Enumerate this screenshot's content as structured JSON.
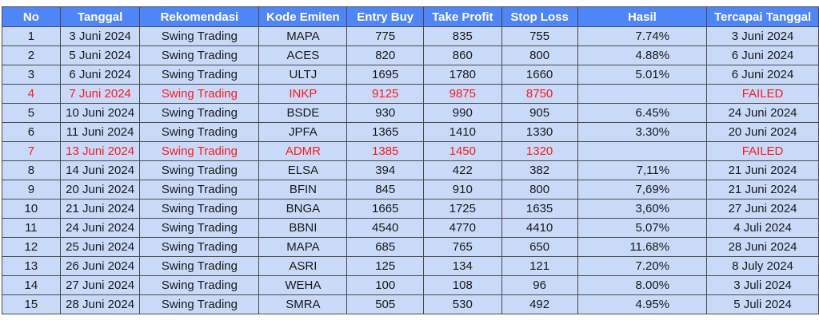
{
  "table": {
    "headers": [
      "No",
      "Tanggal",
      "Rekomendasi",
      "Kode Emiten",
      "Entry Buy",
      "Take Profit",
      "Stop Loss",
      "Hasil",
      "Tercapai Tanggal"
    ],
    "rows": [
      {
        "no": "1",
        "tanggal": "3 Juni 2024",
        "rekomendasi": "Swing Trading",
        "kode": "MAPA",
        "entry": "775",
        "tp": "835",
        "sl": "755",
        "hasil": "7.74%",
        "tercapai": "3 Juni 2024",
        "status": "ok"
      },
      {
        "no": "2",
        "tanggal": "5 Juni 2024",
        "rekomendasi": "Swing Trading",
        "kode": "ACES",
        "entry": "820",
        "tp": "860",
        "sl": "800",
        "hasil": "4.88%",
        "tercapai": "6 Juni 2024",
        "status": "ok"
      },
      {
        "no": "3",
        "tanggal": "6 Juni 2024",
        "rekomendasi": "Swing Trading",
        "kode": "ULTJ",
        "entry": "1695",
        "tp": "1780",
        "sl": "1660",
        "hasil": "5.01%",
        "tercapai": "6 Juni 2024",
        "status": "ok"
      },
      {
        "no": "4",
        "tanggal": "7 Juni 2024",
        "rekomendasi": "Swing Trading",
        "kode": "INKP",
        "entry": "9125",
        "tp": "9875",
        "sl": "8750",
        "hasil": "",
        "tercapai": "FAILED",
        "status": "failed"
      },
      {
        "no": "5",
        "tanggal": "10 Juni 2024",
        "rekomendasi": "Swing Trading",
        "kode": "BSDE",
        "entry": "930",
        "tp": "990",
        "sl": "905",
        "hasil": "6.45%",
        "tercapai": "24 Juni 2024",
        "status": "ok"
      },
      {
        "no": "6",
        "tanggal": "11 Juni 2024",
        "rekomendasi": "Swing Trading",
        "kode": "JPFA",
        "entry": "1365",
        "tp": "1410",
        "sl": "1330",
        "hasil": "3.30%",
        "tercapai": "20 Juni 2024",
        "status": "ok"
      },
      {
        "no": "7",
        "tanggal": "13 Juni 2024",
        "rekomendasi": "Swing Trading",
        "kode": "ADMR",
        "entry": "1385",
        "tp": "1450",
        "sl": "1320",
        "hasil": "",
        "tercapai": "FAILED",
        "status": "failed"
      },
      {
        "no": "8",
        "tanggal": "14 Juni 2024",
        "rekomendasi": "Swing Trading",
        "kode": "ELSA",
        "entry": "394",
        "tp": "422",
        "sl": "382",
        "hasil": "7,11%",
        "tercapai": "21 Juni 2024",
        "status": "ok"
      },
      {
        "no": "9",
        "tanggal": "20 Juni 2024",
        "rekomendasi": "Swing Trading",
        "kode": "BFIN",
        "entry": "845",
        "tp": "910",
        "sl": "800",
        "hasil": "7,69%",
        "tercapai": "21 Juni 2024",
        "status": "ok"
      },
      {
        "no": "10",
        "tanggal": "21 Juni 2024",
        "rekomendasi": "Swing Trading",
        "kode": "BNGA",
        "entry": "1665",
        "tp": "1725",
        "sl": "1635",
        "hasil": "3,60%",
        "tercapai": "27 Juni 2024",
        "status": "ok"
      },
      {
        "no": "11",
        "tanggal": "24 Juni 2024",
        "rekomendasi": "Swing Trading",
        "kode": "BBNI",
        "entry": "4540",
        "tp": "4770",
        "sl": "4410",
        "hasil": "5.07%",
        "tercapai": "4 Juli 2024",
        "status": "ok"
      },
      {
        "no": "12",
        "tanggal": "25 Juni 2024",
        "rekomendasi": "Swing Trading",
        "kode": "MAPA",
        "entry": "685",
        "tp": "765",
        "sl": "650",
        "hasil": "11.68%",
        "tercapai": "28 Juni 2024",
        "status": "ok"
      },
      {
        "no": "13",
        "tanggal": "26 Juni 2024",
        "rekomendasi": "Swing Trading",
        "kode": "ASRI",
        "entry": "125",
        "tp": "134",
        "sl": "121",
        "hasil": "7.20%",
        "tercapai": "8 July 2024",
        "status": "ok"
      },
      {
        "no": "14",
        "tanggal": "27 Juni 2024",
        "rekomendasi": "Swing Trading",
        "kode": "WEHA",
        "entry": "100",
        "tp": "108",
        "sl": "96",
        "hasil": "8.00%",
        "tercapai": "3 Juli 2024",
        "status": "ok"
      },
      {
        "no": "15",
        "tanggal": "28 Juni 2024",
        "rekomendasi": "Swing Trading",
        "kode": "SMRA",
        "entry": "505",
        "tp": "530",
        "sl": "492",
        "hasil": "4.95%",
        "tercapai": "5 Juli 2024",
        "status": "ok"
      }
    ]
  },
  "colors": {
    "header_bg": "#4f86f7",
    "header_text": "#ffffff",
    "row_bg": "#c9daf8",
    "failed_text": "#ff1a1a"
  }
}
